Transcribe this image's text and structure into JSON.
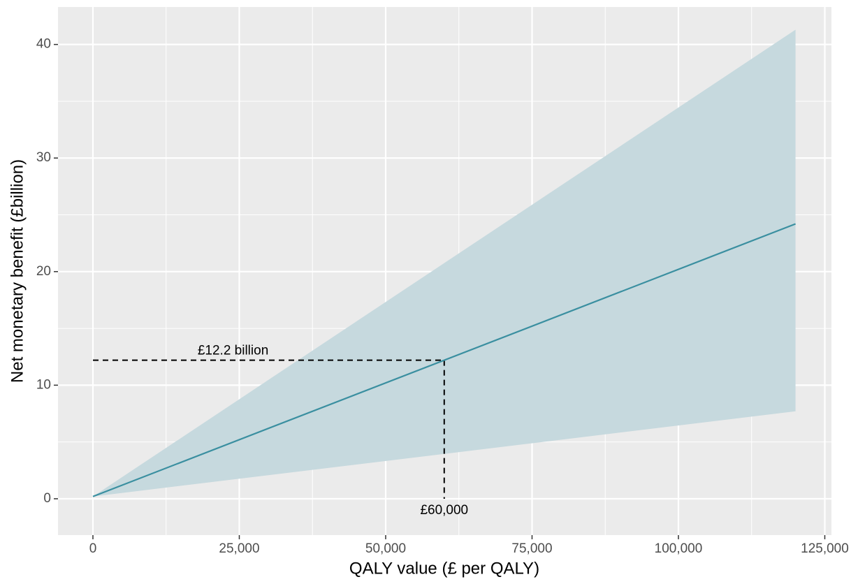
{
  "chart_data": {
    "type": "ribbon-line",
    "x_label": "QALY value (£ per QALY)",
    "y_label": "Net monetary benefit (£billion)",
    "x": [
      0,
      120000
    ],
    "values": [
      0.2,
      24.2
    ],
    "ribbon_upper": [
      0.2,
      41.3
    ],
    "ribbon_lower": [
      0.2,
      7.7
    ],
    "color": "#3a8fa0",
    "ribbon_color": "#c6d9de",
    "xlim": [
      -5966,
      126134
    ],
    "ylim": [
      -3.2,
      43.3
    ],
    "xticks": [
      0,
      {
        "value": 25000,
        "label": "25,000"
      },
      {
        "value": 50000,
        "label": "50,000"
      },
      {
        "value": 75000,
        "label": "75,000"
      },
      {
        "value": 100000,
        "label": "100,000"
      },
      {
        "value": 125000,
        "label": "125,000"
      }
    ],
    "yticks": [
      0,
      10,
      20,
      30,
      40
    ],
    "x_minor_grid": [
      12500,
      37500,
      62500,
      87500,
      112500
    ],
    "y_minor_grid": [
      5,
      15,
      25,
      35
    ],
    "grid": true,
    "reference": {
      "x": 60000,
      "y": 12.2,
      "y_text": "£12.2 billion",
      "x_text": "£60,000"
    }
  }
}
